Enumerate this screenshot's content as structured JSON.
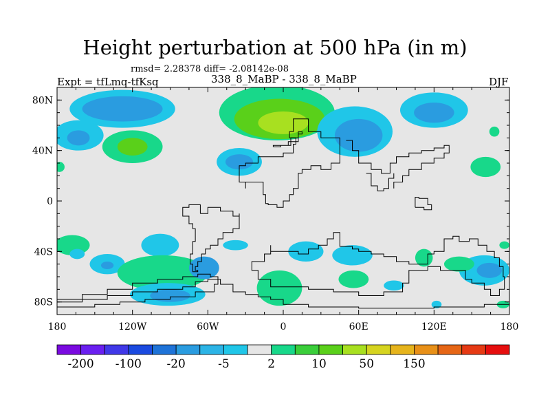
{
  "header": {
    "title": "Height perturbation at 500 hPa (in m)",
    "stats": "rmsd= 2.28378 diff= -2.08142e-08",
    "left_label": "Expt = tfLmq-tfKsq",
    "center_label": "338_8_MaBP - 338_8_MaBP",
    "right_label": "DJF"
  },
  "chart_data": {
    "type": "heatmap",
    "title": "Height perturbation at 500 hPa (in m)",
    "xlabel": "",
    "ylabel": "",
    "xlim": [
      -180,
      180
    ],
    "ylim": [
      -90,
      90
    ],
    "x_ticks": [
      {
        "value": -180,
        "label": "180"
      },
      {
        "value": -120,
        "label": "120W"
      },
      {
        "value": -60,
        "label": "60W"
      },
      {
        "value": 0,
        "label": "0"
      },
      {
        "value": 60,
        "label": "60E"
      },
      {
        "value": 120,
        "label": "120E"
      },
      {
        "value": 180,
        "label": "180"
      }
    ],
    "y_ticks": [
      {
        "value": 80,
        "label": "80N"
      },
      {
        "value": 40,
        "label": "40N"
      },
      {
        "value": 0,
        "label": "0"
      },
      {
        "value": -40,
        "label": "40S"
      },
      {
        "value": -80,
        "label": "80S"
      }
    ],
    "colorbar": {
      "colors": [
        "#7a0ae0",
        "#6a1ff0",
        "#4038e8",
        "#1a4ae0",
        "#1e73d8",
        "#2a9ce0",
        "#2cb4e6",
        "#20c6e8",
        "#e6e6e6",
        "#18d88a",
        "#3ace3a",
        "#5ad01a",
        "#a8e020",
        "#d6d420",
        "#e6b41c",
        "#e89018",
        "#e66616",
        "#e63a14",
        "#e60e0e"
      ],
      "labels": [
        {
          "after_box": 1,
          "text": "-200"
        },
        {
          "after_box": 3,
          "text": "-100"
        },
        {
          "after_box": 5,
          "text": "-20"
        },
        {
          "after_box": 7,
          "text": "-5"
        },
        {
          "after_box": 9,
          "text": "2"
        },
        {
          "after_box": 11,
          "text": "10"
        },
        {
          "after_box": 13,
          "text": "50"
        },
        {
          "after_box": 15,
          "text": "150"
        }
      ]
    },
    "blobs": [
      {
        "lon": -128,
        "lat": 73,
        "rlon": 42,
        "rlat": 15,
        "color": "#20c6e8"
      },
      {
        "lon": -128,
        "lat": 73,
        "rlon": 32,
        "rlat": 10,
        "color": "#2a9ce0"
      },
      {
        "lon": -163,
        "lat": 52,
        "rlon": 20,
        "rlat": 12,
        "color": "#20c6e8"
      },
      {
        "lon": -163,
        "lat": 50,
        "rlon": 9,
        "rlat": 6,
        "color": "#2a9ce0"
      },
      {
        "lon": -120,
        "lat": 43,
        "rlon": 24,
        "rlat": 13,
        "color": "#18d88a"
      },
      {
        "lon": -120,
        "lat": 43,
        "rlon": 12,
        "rlat": 7,
        "color": "#5ad01a"
      },
      {
        "lon": -5,
        "lat": 70,
        "rlon": 46,
        "rlat": 22,
        "color": "#18d88a"
      },
      {
        "lon": -3,
        "lat": 65,
        "rlon": 36,
        "rlat": 16,
        "color": "#5ad01a"
      },
      {
        "lon": 0,
        "lat": 62,
        "rlon": 20,
        "rlat": 9,
        "color": "#a8e020"
      },
      {
        "lon": 57,
        "lat": 55,
        "rlon": 30,
        "rlat": 20,
        "color": "#20c6e8"
      },
      {
        "lon": 60,
        "lat": 52,
        "rlon": 19,
        "rlat": 13,
        "color": "#2a9ce0"
      },
      {
        "lon": -35,
        "lat": 31,
        "rlon": 18,
        "rlat": 11,
        "color": "#20c6e8"
      },
      {
        "lon": -35,
        "lat": 31,
        "rlon": 11,
        "rlat": 6,
        "color": "#2a9ce0"
      },
      {
        "lon": 120,
        "lat": 72,
        "rlon": 27,
        "rlat": 14,
        "color": "#20c6e8"
      },
      {
        "lon": 120,
        "lat": 70,
        "rlon": 16,
        "rlat": 8,
        "color": "#2a9ce0"
      },
      {
        "lon": 161,
        "lat": 27,
        "rlon": 12,
        "rlat": 8,
        "color": "#18d88a"
      },
      {
        "lon": -178,
        "lat": 27,
        "rlon": 4,
        "rlat": 4,
        "color": "#18d88a"
      },
      {
        "lon": 168,
        "lat": 55,
        "rlon": 4,
        "rlat": 4,
        "color": "#18d88a"
      },
      {
        "lon": -168,
        "lat": -35,
        "rlon": 14,
        "rlat": 8,
        "color": "#18d88a"
      },
      {
        "lon": -164,
        "lat": -42,
        "rlon": 6,
        "rlat": 4,
        "color": "#20c6e8"
      },
      {
        "lon": -140,
        "lat": -50,
        "rlon": 14,
        "rlat": 8,
        "color": "#20c6e8"
      },
      {
        "lon": -140,
        "lat": -51,
        "rlon": 5,
        "rlat": 3,
        "color": "#2a9ce0"
      },
      {
        "lon": -98,
        "lat": -35,
        "rlon": 15,
        "rlat": 9,
        "color": "#20c6e8"
      },
      {
        "lon": -96,
        "lat": -57,
        "rlon": 36,
        "rlat": 14,
        "color": "#18d88a"
      },
      {
        "lon": -92,
        "lat": -74,
        "rlon": 30,
        "rlat": 9,
        "color": "#20c6e8"
      },
      {
        "lon": -90,
        "lat": -75,
        "rlon": 16,
        "rlat": 5,
        "color": "#2a9ce0"
      },
      {
        "lon": -63,
        "lat": -53,
        "rlon": 12,
        "rlat": 9,
        "color": "#2a9ce0"
      },
      {
        "lon": -38,
        "lat": -35,
        "rlon": 10,
        "rlat": 4,
        "color": "#20c6e8"
      },
      {
        "lon": -3,
        "lat": -69,
        "rlon": 18,
        "rlat": 14,
        "color": "#18d88a"
      },
      {
        "lon": 18,
        "lat": -40,
        "rlon": 14,
        "rlat": 8,
        "color": "#20c6e8"
      },
      {
        "lon": 55,
        "lat": -43,
        "rlon": 16,
        "rlat": 8,
        "color": "#20c6e8"
      },
      {
        "lon": 56,
        "lat": -62,
        "rlon": 12,
        "rlat": 7,
        "color": "#18d88a"
      },
      {
        "lon": 88,
        "lat": -67,
        "rlon": 8,
        "rlat": 4,
        "color": "#20c6e8"
      },
      {
        "lon": 112,
        "lat": -45,
        "rlon": 7,
        "rlat": 7,
        "color": "#18d88a"
      },
      {
        "lon": 160,
        "lat": -55,
        "rlon": 20,
        "rlat": 12,
        "color": "#20c6e8"
      },
      {
        "lon": 164,
        "lat": -55,
        "rlon": 10,
        "rlat": 6,
        "color": "#2a9ce0"
      },
      {
        "lon": 140,
        "lat": -50,
        "rlon": 12,
        "rlat": 6,
        "color": "#18d88a"
      },
      {
        "lon": 175,
        "lat": -82,
        "rlon": 5,
        "rlat": 3,
        "color": "#18d88a"
      },
      {
        "lon": 176,
        "lat": -35,
        "rlon": 4,
        "rlat": 3,
        "color": "#18d88a"
      },
      {
        "lon": 122,
        "lat": -82,
        "rlon": 4,
        "rlat": 3,
        "color": "#20c6e8"
      }
    ],
    "coastlines": [
      [
        [
          8,
          60
        ],
        [
          8,
          65
        ],
        [
          20,
          65
        ],
        [
          20,
          55
        ],
        [
          30,
          55
        ],
        [
          30,
          50
        ],
        [
          45,
          50
        ],
        [
          45,
          30
        ],
        [
          38,
          25
        ],
        [
          30,
          28
        ],
        [
          22,
          25
        ],
        [
          15,
          22
        ],
        [
          12,
          10
        ],
        [
          8,
          5
        ],
        [
          5,
          0
        ],
        [
          0,
          -5
        ],
        [
          -5,
          -3
        ],
        [
          -12,
          -2
        ],
        [
          -14,
          5
        ],
        [
          -16,
          15
        ],
        [
          -30,
          10
        ],
        [
          -30,
          15
        ],
        [
          -35,
          20
        ],
        [
          -35,
          28
        ],
        [
          -30,
          30
        ],
        [
          -20,
          35
        ],
        [
          -10,
          35
        ],
        [
          0,
          38
        ],
        [
          8,
          45
        ],
        [
          10,
          50
        ],
        [
          5,
          55
        ],
        [
          8,
          60
        ]
      ],
      [
        [
          -66,
          -10
        ],
        [
          -60,
          -5
        ],
        [
          -50,
          -8
        ],
        [
          -40,
          -12
        ],
        [
          -35,
          -10
        ],
        [
          -35,
          -22
        ],
        [
          -40,
          -25
        ],
        [
          -48,
          -30
        ],
        [
          -52,
          -35
        ],
        [
          -58,
          -38
        ],
        [
          -62,
          -42
        ],
        [
          -65,
          -48
        ],
        [
          -68,
          -52
        ],
        [
          -70,
          -55
        ],
        [
          -68,
          -56
        ],
        [
          -72,
          -50
        ],
        [
          -74,
          -42
        ],
        [
          -72,
          -32
        ],
        [
          -70,
          -22
        ],
        [
          -72,
          -18
        ],
        [
          -75,
          -12
        ],
        [
          -80,
          -5
        ],
        [
          -75,
          -3
        ],
        [
          -66,
          -10
        ]
      ],
      [
        [
          -10,
          -35
        ],
        [
          -10,
          -40
        ],
        [
          5,
          -40
        ],
        [
          12,
          -42
        ],
        [
          20,
          -38
        ],
        [
          28,
          -35
        ],
        [
          35,
          -30
        ],
        [
          40,
          -25
        ],
        [
          45,
          -30
        ],
        [
          45,
          -36
        ],
        [
          55,
          -38
        ],
        [
          60,
          -40
        ],
        [
          70,
          -42
        ],
        [
          80,
          -44
        ],
        [
          90,
          -48
        ],
        [
          100,
          -50
        ],
        [
          110,
          -50
        ],
        [
          115,
          -42
        ],
        [
          120,
          -40
        ],
        [
          128,
          -30
        ],
        [
          135,
          -28
        ],
        [
          140,
          -32
        ],
        [
          148,
          -30
        ],
        [
          155,
          -35
        ],
        [
          162,
          -40
        ],
        [
          168,
          -45
        ],
        [
          172,
          -52
        ],
        [
          175,
          -60
        ],
        [
          176,
          -70
        ],
        [
          172,
          -75
        ],
        [
          165,
          -70
        ],
        [
          160,
          -65
        ],
        [
          150,
          -62
        ],
        [
          145,
          -55
        ],
        [
          138,
          -55
        ],
        [
          125,
          -52
        ],
        [
          115,
          -55
        ],
        [
          105,
          -55
        ],
        [
          100,
          -65
        ],
        [
          95,
          -72
        ],
        [
          80,
          -75
        ],
        [
          60,
          -72
        ],
        [
          40,
          -70
        ],
        [
          20,
          -68
        ],
        [
          0,
          -68
        ],
        [
          -10,
          -62
        ],
        [
          -20,
          -55
        ],
        [
          -25,
          -48
        ],
        [
          -15,
          -42
        ],
        [
          -10,
          -35
        ]
      ],
      [
        [
          -180,
          -80
        ],
        [
          -160,
          -78
        ],
        [
          -140,
          -75
        ],
        [
          -120,
          -72
        ],
        [
          -100,
          -70
        ],
        [
          -80,
          -68
        ],
        [
          -70,
          -64
        ],
        [
          -60,
          -62
        ],
        [
          -50,
          -66
        ],
        [
          -40,
          -72
        ],
        [
          -30,
          -74
        ],
        [
          -20,
          -76
        ],
        [
          -10,
          -78
        ],
        [
          0,
          -82
        ],
        [
          20,
          -84
        ],
        [
          60,
          -85
        ],
        [
          120,
          -84
        ],
        [
          160,
          -82
        ],
        [
          180,
          -80
        ]
      ],
      [
        [
          -180,
          -84
        ],
        [
          -150,
          -82
        ],
        [
          -130,
          -80
        ],
        [
          -110,
          -78
        ],
        [
          -90,
          -76
        ],
        [
          -70,
          -72
        ],
        [
          -55,
          -66
        ],
        [
          -52,
          -60
        ],
        [
          -58,
          -58
        ],
        [
          -68,
          -60
        ],
        [
          -80,
          -62
        ],
        [
          -100,
          -65
        ],
        [
          -120,
          -70
        ],
        [
          -140,
          -74
        ],
        [
          -160,
          -78
        ],
        [
          -180,
          -80
        ]
      ],
      [
        [
          50,
          48
        ],
        [
          55,
          40
        ],
        [
          60,
          30
        ],
        [
          70,
          25
        ],
        [
          78,
          22
        ],
        [
          85,
          30
        ],
        [
          90,
          35
        ],
        [
          100,
          38
        ],
        [
          110,
          40
        ],
        [
          120,
          42
        ],
        [
          128,
          44
        ],
        [
          132,
          38
        ],
        [
          128,
          34
        ],
        [
          120,
          30
        ],
        [
          110,
          25
        ],
        [
          100,
          20
        ],
        [
          95,
          15
        ],
        [
          88,
          10
        ]
      ],
      [
        [
          -8,
          43
        ],
        [
          -2,
          44
        ],
        [
          6,
          50
        ],
        [
          12,
          55
        ],
        [
          15,
          53
        ],
        [
          12,
          47
        ],
        [
          4,
          44
        ],
        [
          -8,
          43
        ]
      ],
      [
        [
          66,
          22
        ],
        [
          70,
          12
        ],
        [
          75,
          8
        ],
        [
          80,
          10
        ],
        [
          84,
          18
        ],
        [
          88,
          22
        ]
      ],
      [
        [
          105,
          -5
        ],
        [
          112,
          -7
        ],
        [
          118,
          -3
        ],
        [
          115,
          2
        ],
        [
          108,
          3
        ],
        [
          105,
          -5
        ]
      ]
    ]
  }
}
